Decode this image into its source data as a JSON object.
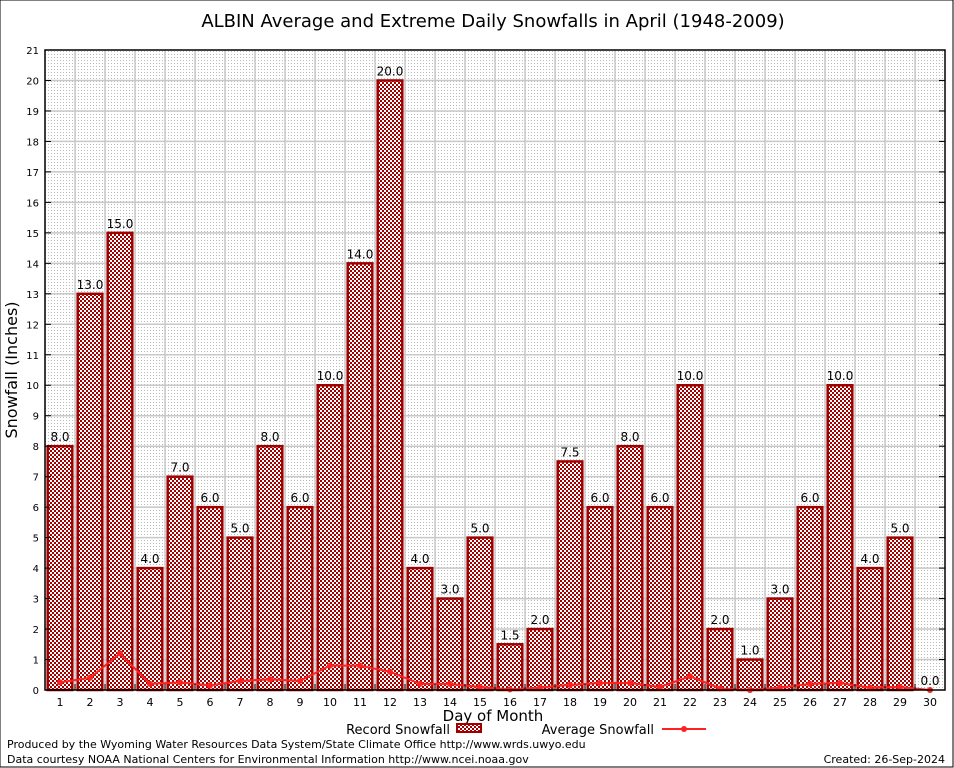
{
  "chart_data": {
    "type": "bar",
    "title": "ALBIN Average and Extreme Daily Snowfalls in April (1948-2009)",
    "xlabel": "Day of Month",
    "ylabel": "Snowfall (Inches)",
    "ylim": [
      0,
      21
    ],
    "yticks": [
      "0",
      "1",
      "2",
      "3",
      "4",
      "5",
      "6",
      "7",
      "8",
      "9",
      "10",
      "11",
      "12",
      "13",
      "14",
      "15",
      "16",
      "17",
      "18",
      "19",
      "20",
      "21"
    ],
    "categories": [
      "1",
      "2",
      "3",
      "4",
      "5",
      "6",
      "7",
      "8",
      "9",
      "10",
      "11",
      "12",
      "13",
      "14",
      "15",
      "16",
      "17",
      "18",
      "19",
      "20",
      "21",
      "22",
      "23",
      "24",
      "25",
      "26",
      "27",
      "28",
      "29",
      "30"
    ],
    "grid": true,
    "legend_placement": "bottom",
    "series": [
      {
        "name": "Record Snowfall",
        "type": "bar",
        "color": "#a00000",
        "values": [
          8.0,
          13.0,
          15.0,
          4.0,
          7.0,
          6.0,
          5.0,
          8.0,
          6.0,
          10.0,
          14.0,
          20.0,
          4.0,
          3.0,
          5.0,
          1.5,
          2.0,
          7.5,
          6.0,
          8.0,
          6.0,
          10.0,
          2.0,
          1.0,
          3.0,
          6.0,
          10.0,
          4.0,
          5.0,
          0.0
        ],
        "labels": [
          "8.0",
          "13.0",
          "15.0",
          "4.0",
          "7.0",
          "6.0",
          "5.0",
          "8.0",
          "6.0",
          "10.0",
          "14.0",
          "20.0",
          "4.0",
          "3.0",
          "5.0",
          "1.5",
          "2.0",
          "7.5",
          "6.0",
          "8.0",
          "6.0",
          "10.0",
          "2.0",
          "1.0",
          "3.0",
          "6.0",
          "10.0",
          "4.0",
          "5.0",
          "0.0"
        ]
      },
      {
        "name": "Average Snowfall",
        "type": "line",
        "color": "#ff2020",
        "values": [
          0.25,
          0.4,
          1.2,
          0.2,
          0.25,
          0.15,
          0.3,
          0.35,
          0.3,
          0.8,
          0.8,
          0.6,
          0.2,
          0.2,
          0.1,
          0.02,
          0.08,
          0.17,
          0.23,
          0.23,
          0.1,
          0.45,
          0.05,
          0.0,
          0.08,
          0.2,
          0.23,
          0.08,
          0.1,
          0.0
        ]
      }
    ]
  },
  "footer": {
    "produced_by": "Produced by the Wyoming Water Resources Data System/State Climate Office http://www.wrds.uwyo.edu",
    "courtesy": "Data courtesy NOAA National Centers for Environmental Information http://www.ncei.noaa.gov",
    "created": "Created: 26-Sep-2024"
  }
}
